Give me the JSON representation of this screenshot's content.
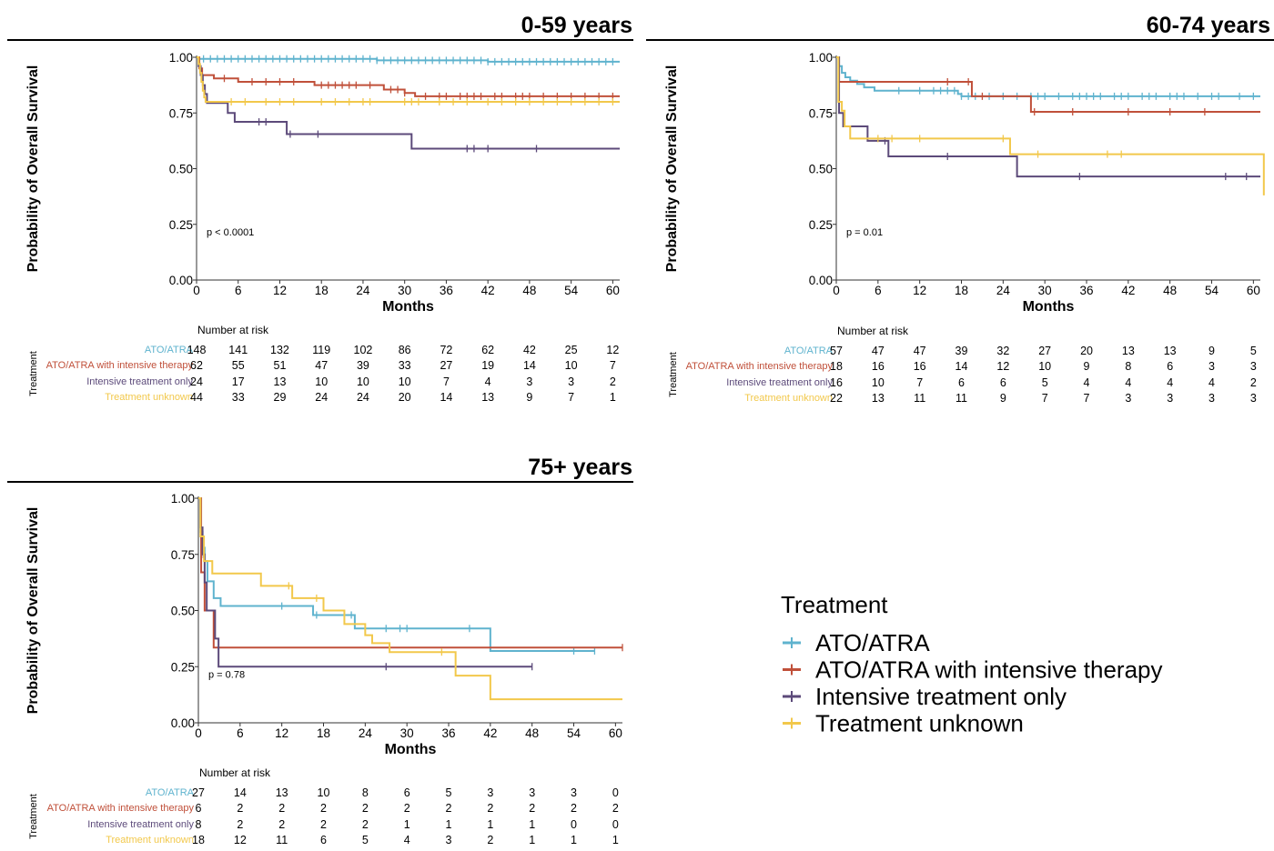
{
  "colors": {
    "ATO/ATRA": "#5fb3ce",
    "ATO/ATRA with intensive therapy": "#c0503a",
    "Intensive treatment only": "#5c4a7a",
    "Treatment unknown": "#f2c84b"
  },
  "legend": {
    "title": "Treatment",
    "items": [
      "ATO/ATRA",
      "ATO/ATRA with intensive therapy",
      "Intensive treatment only",
      "Treatment unknown"
    ]
  },
  "chart_data": [
    {
      "type": "line",
      "title": "0-59 years",
      "ylabel": "Probability of Overall Survival",
      "xlabel": "Months",
      "xlim": [
        0,
        61
      ],
      "ylim": [
        0,
        1
      ],
      "x_ticks": [
        0,
        6,
        12,
        18,
        24,
        30,
        36,
        42,
        48,
        54,
        60
      ],
      "y_ticks": [
        "0.00",
        "0.25",
        "0.50",
        "0.75",
        "1.00"
      ],
      "p_value": "p < 0.0001",
      "risk_table": {
        "title": "Number at risk",
        "side_label": "Treatment",
        "rows": [
          {
            "label": "ATO/ATRA",
            "values": [
              148,
              141,
              132,
              119,
              102,
              86,
              72,
              62,
              42,
              25,
              12
            ]
          },
          {
            "label": "ATO/ATRA with intensive therapy",
            "values": [
              62,
              55,
              51,
              47,
              39,
              33,
              27,
              19,
              14,
              10,
              7
            ]
          },
          {
            "label": "Intensive treatment only",
            "values": [
              24,
              17,
              13,
              10,
              10,
              10,
              7,
              4,
              3,
              3,
              2
            ]
          },
          {
            "label": "Treatment unknown",
            "values": [
              44,
              33,
              29,
              24,
              24,
              20,
              14,
              13,
              9,
              7,
              1
            ]
          }
        ]
      },
      "series": [
        {
          "name": "ATO/ATRA",
          "steps": [
            [
              0,
              1.0
            ],
            [
              0.3,
              0.993
            ],
            [
              26,
              0.986
            ],
            [
              42,
              0.98
            ],
            [
              61,
              0.98
            ]
          ],
          "censor": [
            1,
            2,
            3,
            4,
            5,
            6,
            7,
            8,
            9,
            10,
            11,
            12,
            13,
            14,
            15,
            16,
            17,
            18,
            19,
            20,
            21,
            22,
            23,
            24,
            25,
            26,
            27,
            28,
            29,
            30,
            31,
            32,
            33,
            34,
            35,
            36,
            37,
            38,
            39,
            40,
            41,
            42,
            43,
            44,
            45,
            46,
            47,
            48,
            49,
            50,
            51,
            52,
            53,
            54,
            55,
            56,
            57,
            58,
            59,
            60
          ]
        },
        {
          "name": "ATO/ATRA with intensive therapy",
          "steps": [
            [
              0,
              1.0
            ],
            [
              0.4,
              0.95
            ],
            [
              0.8,
              0.92
            ],
            [
              2.5,
              0.905
            ],
            [
              6,
              0.89
            ],
            [
              17,
              0.875
            ],
            [
              27,
              0.855
            ],
            [
              30,
              0.84
            ],
            [
              31.5,
              0.825
            ],
            [
              61,
              0.825
            ]
          ],
          "censor": [
            4,
            8,
            10,
            12,
            14,
            18,
            19,
            20,
            21,
            22,
            23,
            25,
            28,
            29,
            30,
            33,
            35,
            36,
            38,
            39,
            40,
            41,
            43,
            44,
            46,
            47,
            48,
            50,
            52,
            54,
            56,
            58,
            60
          ]
        },
        {
          "name": "Intensive treatment only",
          "steps": [
            [
              0,
              1.0
            ],
            [
              0.3,
              0.96
            ],
            [
              0.6,
              0.92
            ],
            [
              0.9,
              0.875
            ],
            [
              1.2,
              0.835
            ],
            [
              1.5,
              0.795
            ],
            [
              4.5,
              0.75
            ],
            [
              5.5,
              0.71
            ],
            [
              13,
              0.655
            ],
            [
              31,
              0.59
            ],
            [
              61,
              0.59
            ]
          ],
          "censor": [
            9,
            10,
            13.5,
            17.5,
            39,
            40,
            42,
            49
          ]
        },
        {
          "name": "Treatment unknown",
          "steps": [
            [
              0,
              1.0
            ],
            [
              0.3,
              0.97
            ],
            [
              0.5,
              0.93
            ],
            [
              0.7,
              0.89
            ],
            [
              0.9,
              0.85
            ],
            [
              1.1,
              0.82
            ],
            [
              1.3,
              0.8
            ],
            [
              61,
              0.8
            ]
          ],
          "censor": [
            5,
            7,
            10,
            12,
            14,
            18,
            20,
            22,
            24,
            25,
            30,
            31,
            32,
            35,
            37,
            39,
            42,
            44,
            46,
            48,
            50,
            52,
            54,
            56,
            58,
            60
          ]
        }
      ]
    },
    {
      "type": "line",
      "title": "60-74 years",
      "ylabel": "Probability of Overall Survival",
      "xlabel": "Months",
      "xlim": [
        0,
        61
      ],
      "ylim": [
        0,
        1
      ],
      "x_ticks": [
        0,
        6,
        12,
        18,
        24,
        30,
        36,
        42,
        48,
        54,
        60
      ],
      "y_ticks": [
        "0.00",
        "0.25",
        "0.50",
        "0.75",
        "1.00"
      ],
      "p_value": "p = 0.01",
      "risk_table": {
        "title": "Number at risk",
        "side_label": "Treatment",
        "rows": [
          {
            "label": "ATO/ATRA",
            "values": [
              57,
              47,
              47,
              39,
              32,
              27,
              20,
              13,
              13,
              9,
              5
            ]
          },
          {
            "label": "ATO/ATRA with intensive therapy",
            "values": [
              18,
              16,
              16,
              14,
              12,
              10,
              9,
              8,
              6,
              3,
              3
            ]
          },
          {
            "label": "Intensive treatment only",
            "values": [
              16,
              10,
              7,
              6,
              6,
              5,
              4,
              4,
              4,
              4,
              2
            ]
          },
          {
            "label": "Treatment unknown",
            "values": [
              22,
              13,
              11,
              11,
              9,
              7,
              7,
              3,
              3,
              3,
              3
            ]
          }
        ]
      },
      "series": [
        {
          "name": "ATO/ATRA",
          "steps": [
            [
              0,
              1.0
            ],
            [
              0.4,
              0.96
            ],
            [
              0.8,
              0.93
            ],
            [
              1.3,
              0.91
            ],
            [
              2,
              0.895
            ],
            [
              3,
              0.88
            ],
            [
              4,
              0.865
            ],
            [
              5.5,
              0.85
            ],
            [
              17.5,
              0.835
            ],
            [
              18,
              0.825
            ],
            [
              61,
              0.825
            ]
          ],
          "censor": [
            9,
            12,
            14,
            15,
            16,
            17,
            18,
            19,
            20,
            22,
            24,
            26,
            28,
            29,
            30,
            32,
            34,
            35,
            36,
            37,
            38,
            40,
            41,
            42,
            44,
            45,
            46,
            48,
            49,
            50,
            52,
            54,
            55,
            58,
            60
          ]
        },
        {
          "name": "ATO/ATRA with intensive therapy",
          "steps": [
            [
              0,
              1.0
            ],
            [
              0.4,
              0.89
            ],
            [
              19.5,
              0.825
            ],
            [
              28,
              0.755
            ],
            [
              61,
              0.755
            ]
          ],
          "censor": [
            16,
            19,
            21,
            28.5,
            34,
            42,
            48,
            53
          ]
        },
        {
          "name": "Intensive treatment only",
          "steps": [
            [
              0,
              1.0
            ],
            [
              0.4,
              0.75
            ],
            [
              1,
              0.69
            ],
            [
              4.5,
              0.625
            ],
            [
              7.5,
              0.555
            ],
            [
              26,
              0.465
            ],
            [
              61,
              0.465
            ]
          ],
          "censor": [
            7,
            16,
            35,
            56,
            59
          ]
        },
        {
          "name": "Treatment unknown",
          "steps": [
            [
              0,
              1.0
            ],
            [
              0.3,
              0.8
            ],
            [
              0.8,
              0.76
            ],
            [
              1.2,
              0.69
            ],
            [
              2,
              0.635
            ],
            [
              25,
              0.565
            ],
            [
              61,
              0.565
            ],
            [
              61.5,
              0.38
            ]
          ],
          "censor": [
            6,
            8,
            12,
            24,
            29,
            39,
            41
          ]
        }
      ]
    },
    {
      "type": "line",
      "title": "75+ years",
      "ylabel": "Probability of Overall Survival",
      "xlabel": "Months",
      "xlim": [
        0,
        61
      ],
      "ylim": [
        0,
        1
      ],
      "x_ticks": [
        0,
        6,
        12,
        18,
        24,
        30,
        36,
        42,
        48,
        54,
        60
      ],
      "y_ticks": [
        "0.00",
        "0.25",
        "0.50",
        "0.75",
        "1.00"
      ],
      "p_value": "p = 0.78",
      "risk_table": {
        "title": "Number at risk",
        "side_label": "Treatment",
        "rows": [
          {
            "label": "ATO/ATRA",
            "values": [
              27,
              14,
              13,
              10,
              8,
              6,
              5,
              3,
              3,
              3,
              0
            ]
          },
          {
            "label": "ATO/ATRA with intensive therapy",
            "values": [
              6,
              2,
              2,
              2,
              2,
              2,
              2,
              2,
              2,
              2,
              2
            ]
          },
          {
            "label": "Intensive treatment only",
            "values": [
              8,
              2,
              2,
              2,
              2,
              1,
              1,
              1,
              1,
              0,
              0
            ]
          },
          {
            "label": "Treatment unknown",
            "values": [
              18,
              12,
              11,
              6,
              5,
              4,
              3,
              2,
              1,
              1,
              1
            ]
          }
        ]
      },
      "series": [
        {
          "name": "ATO/ATRA",
          "steps": [
            [
              0,
              1.0
            ],
            [
              0.3,
              0.85
            ],
            [
              0.6,
              0.78
            ],
            [
              0.9,
              0.72
            ],
            [
              1.3,
              0.63
            ],
            [
              2.2,
              0.555
            ],
            [
              3.2,
              0.52
            ],
            [
              16.5,
              0.48
            ],
            [
              22.5,
              0.42
            ],
            [
              42,
              0.32
            ],
            [
              57,
              0.32
            ]
          ],
          "censor": [
            12,
            17,
            21,
            22,
            27,
            29,
            30,
            39,
            54,
            57
          ]
        },
        {
          "name": "ATO/ATRA with intensive therapy",
          "steps": [
            [
              0,
              1.0
            ],
            [
              0.4,
              0.67
            ],
            [
              0.9,
              0.5
            ],
            [
              2.2,
              0.335
            ],
            [
              61,
              0.335
            ]
          ],
          "censor": [
            61
          ]
        },
        {
          "name": "Intensive treatment only",
          "steps": [
            [
              0,
              1.0
            ],
            [
              0.3,
              0.87
            ],
            [
              0.6,
              0.75
            ],
            [
              0.9,
              0.625
            ],
            [
              1.2,
              0.5
            ],
            [
              2.4,
              0.375
            ],
            [
              2.9,
              0.25
            ],
            [
              48,
              0.25
            ]
          ],
          "censor": [
            0.7,
            27,
            48
          ]
        },
        {
          "name": "Treatment unknown",
          "steps": [
            [
              0,
              1.0
            ],
            [
              0.3,
              0.83
            ],
            [
              0.8,
              0.72
            ],
            [
              2,
              0.665
            ],
            [
              9,
              0.61
            ],
            [
              13.5,
              0.555
            ],
            [
              18,
              0.5
            ],
            [
              21,
              0.44
            ],
            [
              24,
              0.39
            ],
            [
              25,
              0.355
            ],
            [
              27,
              0.355
            ],
            [
              27.5,
              0.315
            ],
            [
              36,
              0.315
            ],
            [
              37,
              0.21
            ],
            [
              42,
              0.105
            ],
            [
              61,
              0.105
            ]
          ],
          "censor": [
            13,
            17,
            35
          ]
        }
      ]
    }
  ]
}
